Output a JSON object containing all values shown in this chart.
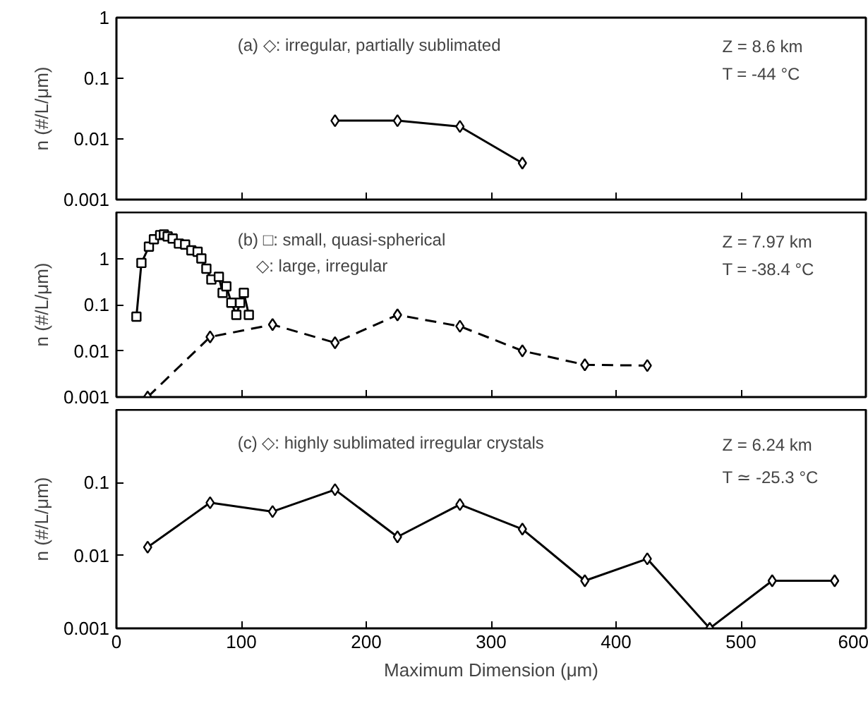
{
  "chart_data": [
    {
      "type": "line",
      "xlim": [
        0,
        600
      ],
      "xticks": [
        0,
        100,
        200,
        300,
        400,
        500,
        600
      ],
      "ylim": [
        0.001,
        1
      ],
      "yticks": [
        0.001,
        0.01,
        0.1,
        1
      ],
      "log": true,
      "ylabel": "n (#/L/μm)",
      "tick_labels": "y",
      "grid": false,
      "annotations": [
        "(a)  ◇: irregular, partially sublimated",
        "Z = 8.6 km",
        "T = -44 °C"
      ],
      "series": [
        {
          "color": "#000000",
          "marker": "diamond",
          "line_style": "solid",
          "x": [
            175,
            225,
            275,
            325
          ],
          "values": [
            0.02,
            0.02,
            0.016,
            0.004
          ]
        }
      ]
    },
    {
      "type": "line",
      "xlim": [
        0,
        600
      ],
      "xticks": [
        0,
        100,
        200,
        300,
        400,
        500,
        600
      ],
      "ylim": [
        0.001,
        10
      ],
      "yticks": [
        0.001,
        0.01,
        0.1,
        1
      ],
      "log": true,
      "ylabel": "n (#/L/μm)",
      "tick_labels": "y",
      "grid": false,
      "annotations": [
        "(b)  □: small, quasi-spherical",
        "◇: large, irregular",
        "Z = 7.97 km",
        "T = -38.4 °C"
      ],
      "series": [
        {
          "color": "#000000",
          "marker": "square",
          "line_style": "solid",
          "x": [
            16,
            20,
            26,
            30,
            35,
            38,
            41,
            45,
            50,
            55,
            60,
            65,
            68,
            72,
            76,
            82,
            85,
            88,
            92,
            96,
            99,
            102,
            106
          ],
          "values": [
            0.055,
            0.8,
            1.8,
            2.6,
            3.2,
            3.3,
            3.0,
            2.7,
            2.1,
            2.0,
            1.5,
            1.4,
            1.0,
            0.6,
            0.35,
            0.4,
            0.18,
            0.25,
            0.11,
            0.06,
            0.11,
            0.18,
            0.06
          ]
        },
        {
          "color": "#000000",
          "marker": "diamond",
          "line_style": "dashed",
          "x": [
            25,
            75,
            125,
            175,
            225,
            275,
            325,
            375,
            425
          ],
          "values": [
            0.001,
            0.02,
            0.037,
            0.015,
            0.06,
            0.034,
            0.01,
            0.005,
            0.0048
          ]
        }
      ]
    },
    {
      "type": "line",
      "xlim": [
        0,
        600
      ],
      "xticks": [
        0,
        100,
        200,
        300,
        400,
        500,
        600
      ],
      "ylim": [
        0.001,
        1
      ],
      "yticks": [
        0.001,
        0.01,
        0.1
      ],
      "log": true,
      "ylabel": "n (#/L/μm)",
      "xlabel": "Maximum Dimension (μm)",
      "grid": false,
      "annotations": [
        "(c)  ◇: highly sublimated irregular crystals",
        "Z = 6.24 km",
        "T ≃ -25.3 °C"
      ],
      "series": [
        {
          "color": "#000000",
          "marker": "diamond",
          "line_style": "solid",
          "x": [
            25,
            75,
            125,
            175,
            225,
            275,
            325,
            375,
            425,
            475,
            525,
            575
          ],
          "values": [
            0.013,
            0.053,
            0.04,
            0.08,
            0.018,
            0.05,
            0.023,
            0.0045,
            0.009,
            0.001,
            0.0045,
            0.0045
          ]
        }
      ]
    }
  ]
}
